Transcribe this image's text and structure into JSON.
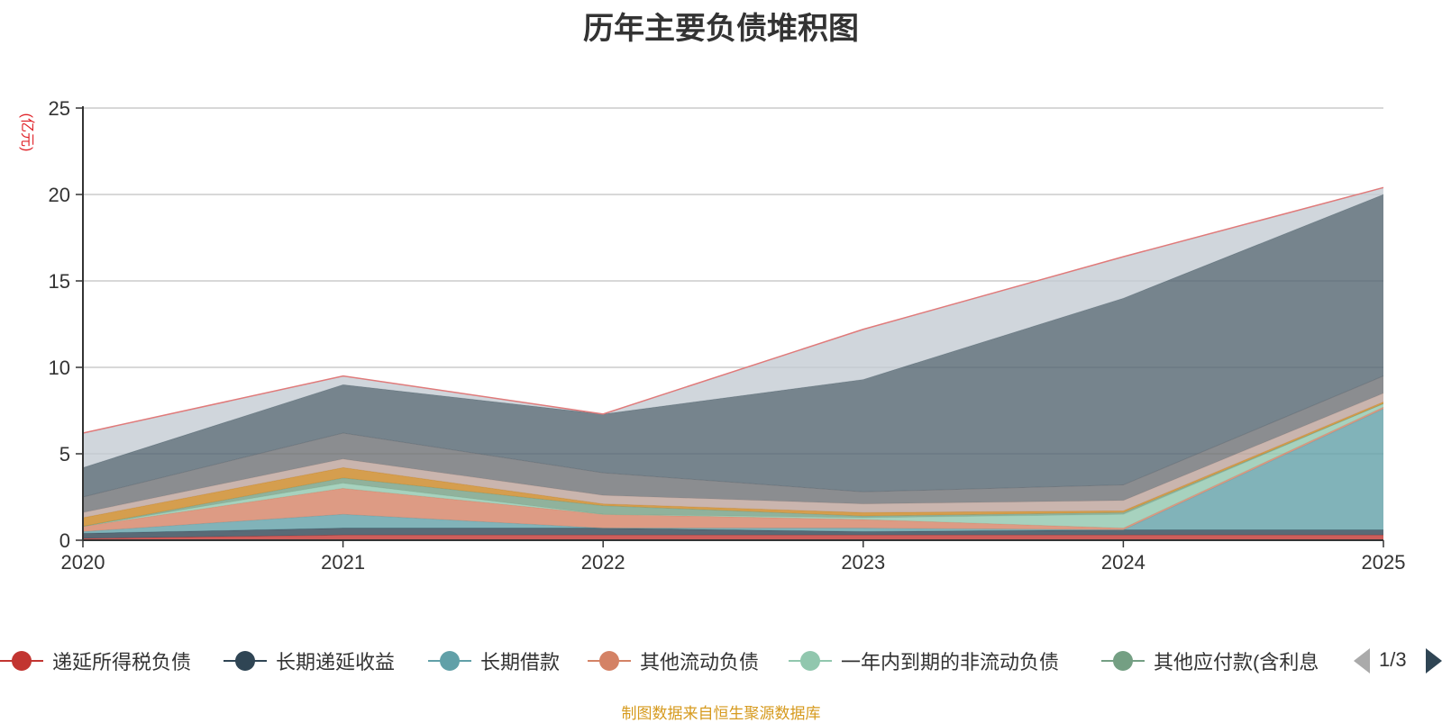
{
  "chart_data": {
    "type": "area",
    "stacked": true,
    "title": "历年主要负债堆积图",
    "y_unit": "(亿元)",
    "x": [
      "2020",
      "2021",
      "2022",
      "2023",
      "2024",
      "2025"
    ],
    "ylim": [
      0,
      25
    ],
    "y_ticks": [
      0,
      5,
      10,
      15,
      20,
      25
    ],
    "grid": true,
    "legend_position": "bottom",
    "series": [
      {
        "name": "递延所得税负债",
        "color": "#c23531",
        "values": [
          0.1,
          0.3,
          0.3,
          0.3,
          0.3,
          0.3
        ]
      },
      {
        "name": "长期递延收益",
        "color": "#2f4554",
        "values": [
          0.3,
          0.4,
          0.4,
          0.2,
          0.3,
          0.3
        ]
      },
      {
        "name": "长期借款",
        "color": "#61a0a8",
        "values": [
          0.1,
          0.8,
          0.0,
          0.2,
          0.0,
          7.0
        ]
      },
      {
        "name": "其他流动负债",
        "color": "#d48265",
        "values": [
          0.3,
          1.5,
          0.8,
          0.5,
          0.1,
          0.1
        ]
      },
      {
        "name": "一年内到期的非流动负债",
        "color": "#91c7ae",
        "values": [
          0.0,
          0.3,
          0.0,
          0.1,
          0.8,
          0.2
        ]
      },
      {
        "name": "其他应付款(含利息",
        "color": "#749f83",
        "values": [
          0.0,
          0.3,
          0.5,
          0.1,
          0.1,
          0.0
        ]
      },
      {
        "name": "",
        "color": "#ca8622",
        "values": [
          0.5,
          0.6,
          0.1,
          0.2,
          0.1,
          0.1
        ]
      },
      {
        "name": "",
        "color": "#bda29a",
        "values": [
          0.3,
          0.5,
          0.5,
          0.5,
          0.6,
          0.5
        ]
      },
      {
        "name": "",
        "color": "#6e7074",
        "values": [
          0.9,
          1.5,
          1.3,
          0.7,
          0.9,
          1.0
        ]
      },
      {
        "name": "",
        "color": "#546570",
        "values": [
          1.7,
          2.8,
          3.4,
          6.5,
          10.8,
          10.5
        ]
      },
      {
        "name": "",
        "color": "#c4ccd3",
        "values": [
          2.0,
          0.5,
          0.0,
          2.9,
          2.4,
          0.4
        ]
      }
    ]
  },
  "legend": {
    "items": [
      {
        "label": "递延所得税负债",
        "color": "#c23531"
      },
      {
        "label": "长期递延收益",
        "color": "#2f4554"
      },
      {
        "label": "长期借款",
        "color": "#61a0a8"
      },
      {
        "label": "其他流动负债",
        "color": "#d48265"
      },
      {
        "label": "一年内到期的非流动负债",
        "color": "#91c7ae"
      },
      {
        "label": "其他应付款(含利息",
        "color": "#749f83"
      }
    ],
    "page_indicator": "1/3"
  },
  "source_note": "制图数据来自恒生聚源数据库"
}
